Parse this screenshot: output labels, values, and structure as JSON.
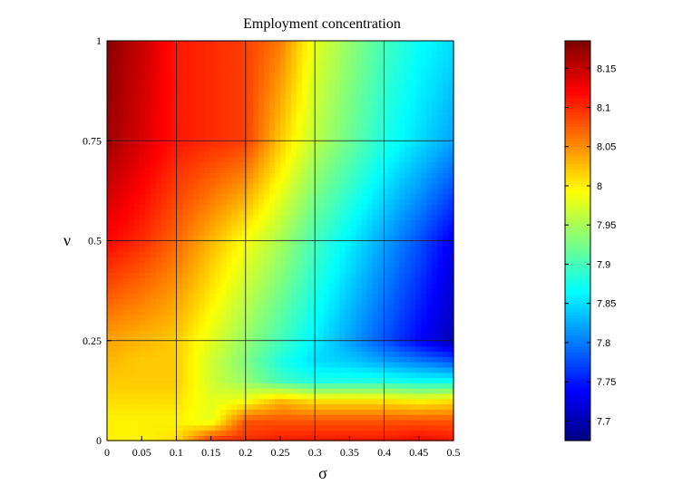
{
  "chart_data": {
    "type": "heatmap",
    "title": "Employment concentration",
    "xlabel": "σ",
    "ylabel": "ν",
    "xlim": [
      0,
      0.5
    ],
    "ylim": [
      0,
      1
    ],
    "x_ticks": [
      0,
      0.05,
      0.1,
      0.15,
      0.2,
      0.25,
      0.3,
      0.35,
      0.4,
      0.45,
      0.5
    ],
    "x_tick_labels": [
      "0",
      "0.05",
      "0.1",
      "0.15",
      "0.2",
      "0.25",
      "0.3",
      "0.35",
      "0.4",
      "0.45",
      "0.5"
    ],
    "y_ticks": [
      0,
      0.25,
      0.5,
      0.75,
      1
    ],
    "y_tick_labels": [
      "0",
      "0.25",
      "0.5",
      "0.75",
      "1"
    ],
    "grid": true,
    "colormap": "jet",
    "clim": [
      7.675,
      8.185
    ],
    "colorbar_ticks": [
      7.7,
      7.75,
      7.8,
      7.85,
      7.9,
      7.95,
      8,
      8.05,
      8.1,
      8.15
    ],
    "colorbar_tick_labels": [
      "7.7",
      "7.75",
      "7.8",
      "7.85",
      "7.9",
      "7.95",
      "8",
      "8.05",
      "8.1",
      "8.15"
    ],
    "colorbar_location": "right",
    "x": [
      0,
      0.05,
      0.1,
      0.15,
      0.2,
      0.25,
      0.3,
      0.35,
      0.4,
      0.45,
      0.5
    ],
    "y": [
      0,
      0.05,
      0.1,
      0.15,
      0.2,
      0.25,
      0.5,
      0.75,
      1
    ],
    "z": [
      [
        8.0,
        8.0,
        8.01,
        8.1,
        8.1,
        8.11,
        8.11,
        8.11,
        8.11,
        8.12,
        8.11
      ],
      [
        8.0,
        8.0,
        8.0,
        7.98,
        8.08,
        8.08,
        8.08,
        8.08,
        8.08,
        8.08,
        8.08
      ],
      [
        8.01,
        8.01,
        8.01,
        7.98,
        7.99,
        8.03,
        8.01,
        8.01,
        8.01,
        8.0,
        8.01
      ],
      [
        8.02,
        8.02,
        8.02,
        7.97,
        7.94,
        7.9,
        7.88,
        7.88,
        7.88,
        7.87,
        7.87
      ],
      [
        8.03,
        8.02,
        8.02,
        7.97,
        7.93,
        7.88,
        7.85,
        7.84,
        7.82,
        7.8,
        7.78
      ],
      [
        8.04,
        8.03,
        8.02,
        7.98,
        7.94,
        7.9,
        7.86,
        7.82,
        7.78,
        7.74,
        7.7
      ],
      [
        8.12,
        8.1,
        8.07,
        8.03,
        7.99,
        7.95,
        7.9,
        7.86,
        7.82,
        7.78,
        7.73
      ],
      [
        8.17,
        8.14,
        8.11,
        8.1,
        8.09,
        8.02,
        7.96,
        7.92,
        7.88,
        7.85,
        7.82
      ],
      [
        8.18,
        8.15,
        8.11,
        8.1,
        8.09,
        8.06,
        7.98,
        7.94,
        7.9,
        7.87,
        7.85
      ]
    ]
  }
}
